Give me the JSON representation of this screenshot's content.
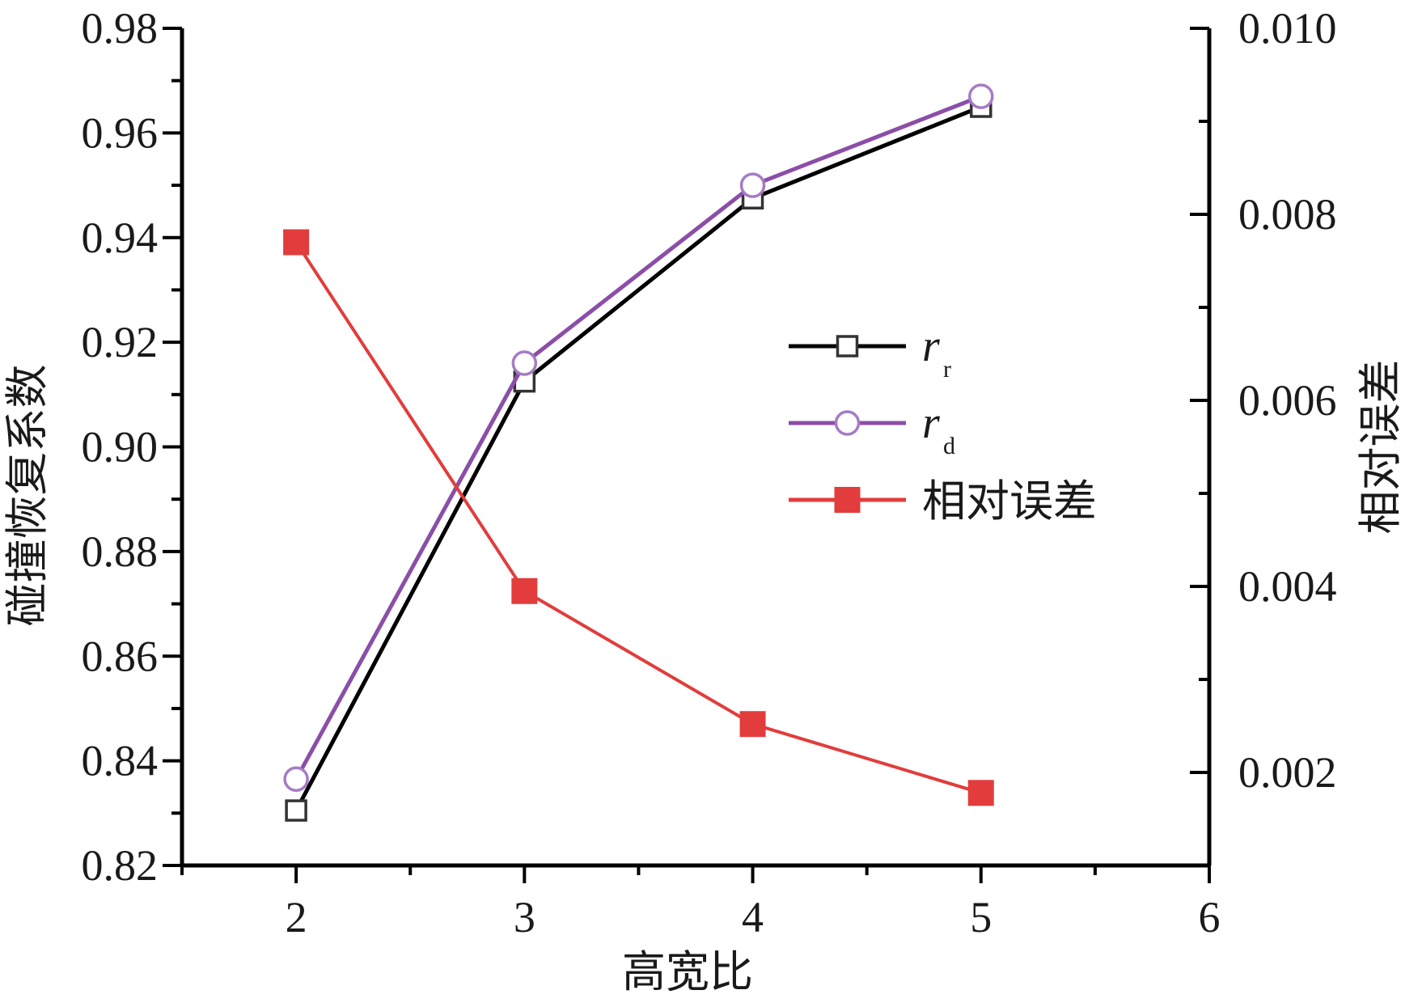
{
  "chart_data": {
    "type": "line",
    "xlabel": "高宽比",
    "ylabel": "碰撞恢复系数",
    "y2label": "相对误差",
    "xlim": [
      1.5,
      6
    ],
    "ylim": [
      0.82,
      0.98
    ],
    "y2lim": [
      0.001,
      0.01
    ],
    "xticks": [
      "2",
      "3",
      "4",
      "5",
      "6"
    ],
    "yticks": [
      "0.82",
      "0.84",
      "0.86",
      "0.88",
      "0.90",
      "0.92",
      "0.94",
      "0.96",
      "0.98"
    ],
    "y2ticks": [
      "0.002",
      "0.004",
      "0.006",
      "0.008",
      "0.010"
    ],
    "x": [
      2,
      3,
      4,
      5
    ],
    "series": [
      {
        "name_main": "r",
        "name_sub": "r",
        "axis": "left",
        "marker": "open-square",
        "color": "#000000",
        "marker_color": "#333333",
        "values": [
          0.8305,
          0.9125,
          0.9475,
          0.965
        ]
      },
      {
        "name_main": "r",
        "name_sub": "d",
        "axis": "left",
        "marker": "open-circle",
        "color": "#8b4ea8",
        "marker_color": "#a57cc4",
        "values": [
          0.8365,
          0.916,
          0.95,
          0.967
        ]
      },
      {
        "name_main": "相对误差",
        "name_sub": "",
        "axis": "right",
        "marker": "filled-square",
        "color": "#e23c3c",
        "marker_color": "#e23c3c",
        "values": [
          0.0077,
          0.00395,
          0.00252,
          0.00178
        ]
      }
    ],
    "legend_position": "center-right",
    "grid": false
  }
}
